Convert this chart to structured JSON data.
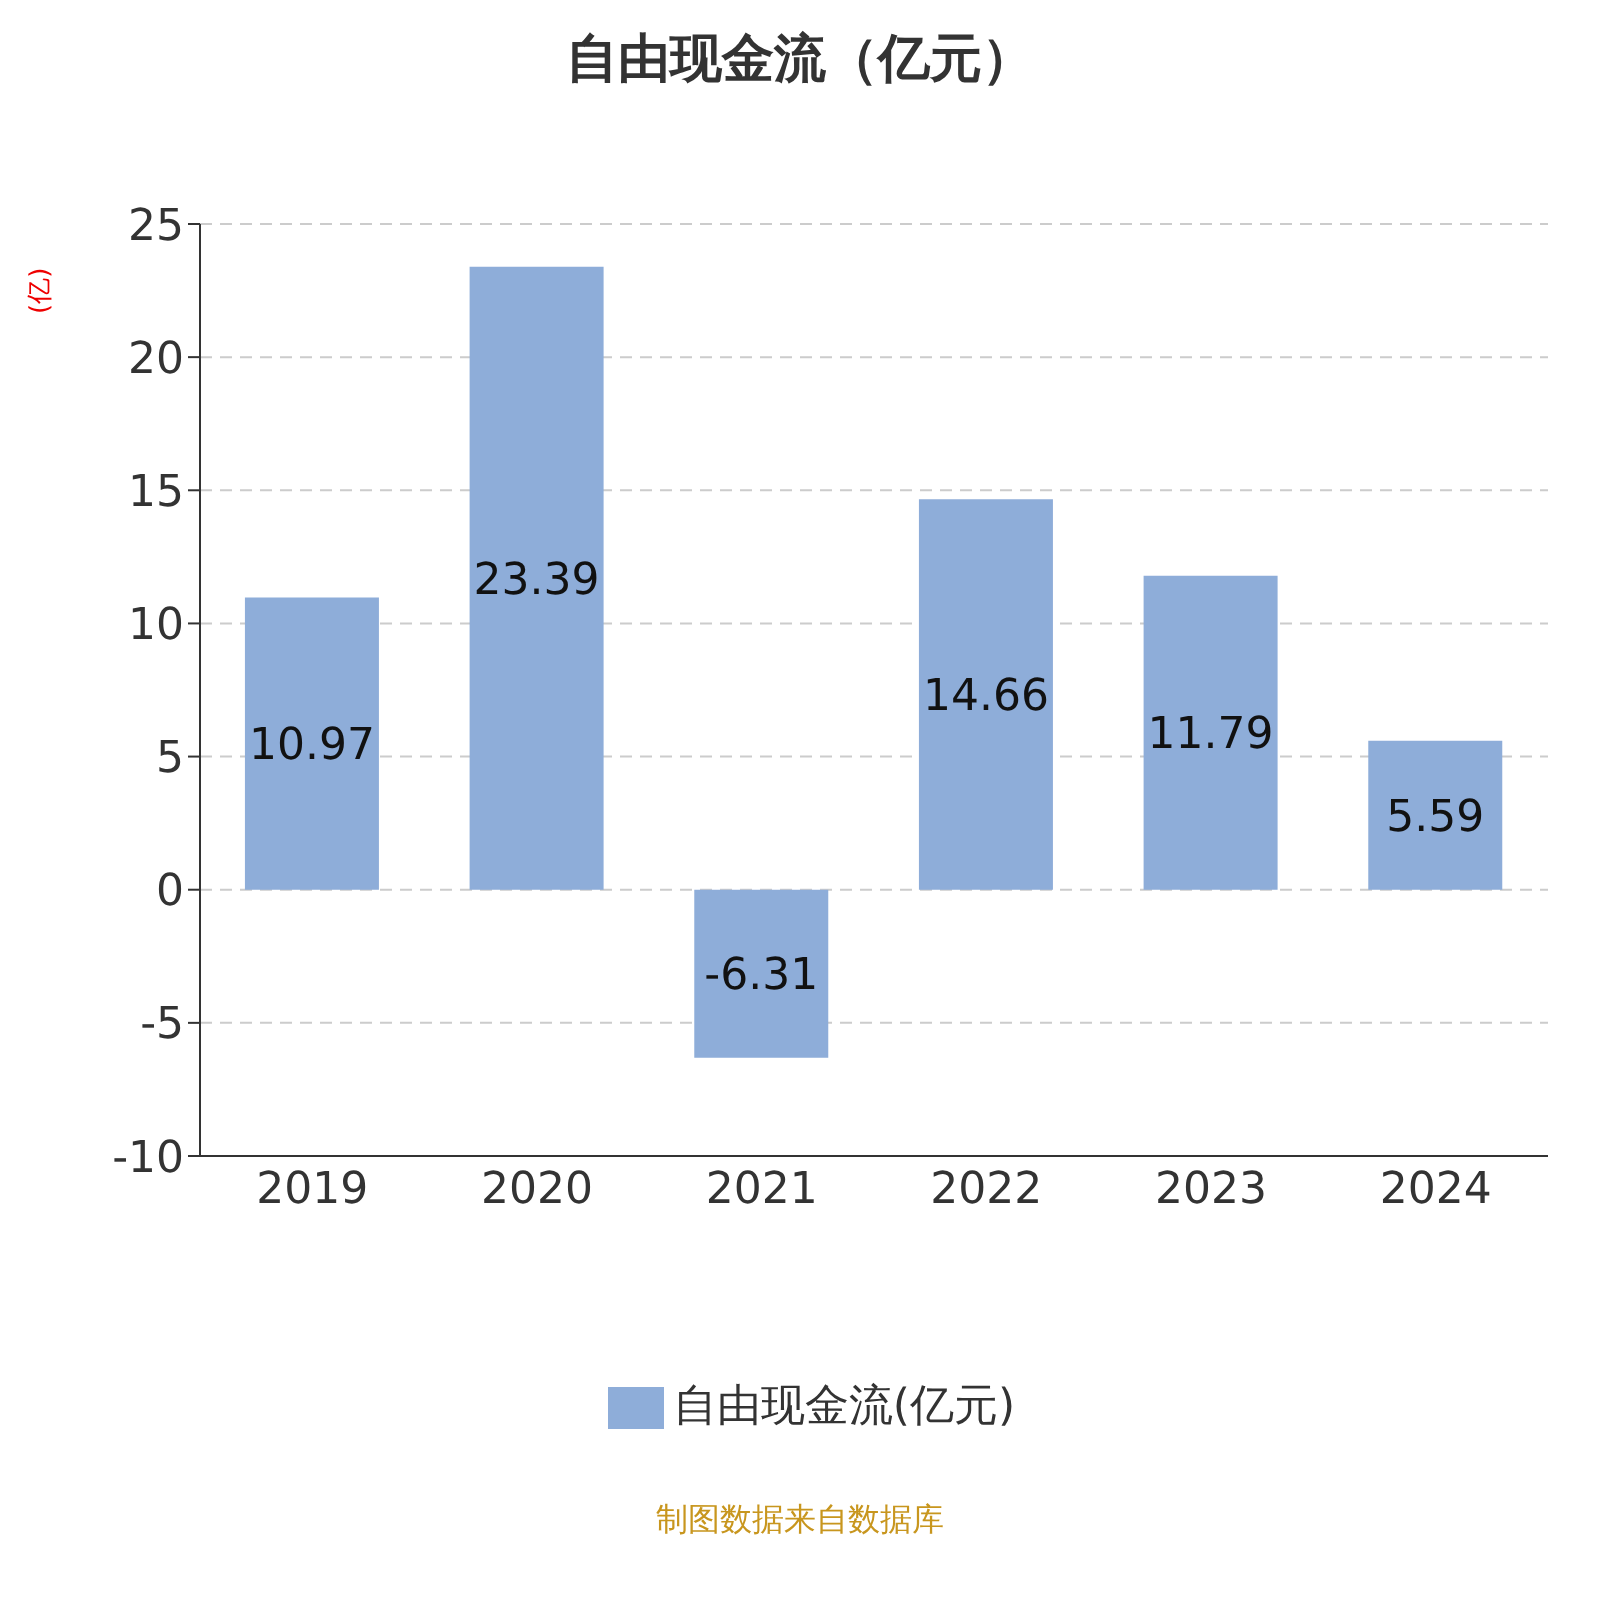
{
  "chart_data": {
    "type": "bar",
    "title": "自由现金流（亿元）",
    "ylabel": "(亿)",
    "categories": [
      "2019",
      "2020",
      "2021",
      "2022",
      "2023",
      "2024"
    ],
    "series": [
      {
        "name": "自由现金流(亿元)",
        "color": "#8eadd9",
        "values": [
          10.97,
          23.39,
          -6.31,
          14.66,
          11.79,
          5.59
        ]
      }
    ],
    "ylim": [
      -10,
      25
    ],
    "yticks": [
      -10,
      -5,
      0,
      5,
      10,
      15,
      20,
      25
    ],
    "grid": "y",
    "legend": "bottom",
    "data_labels": true,
    "annotations": [
      "制图数据来自数据库"
    ]
  }
}
